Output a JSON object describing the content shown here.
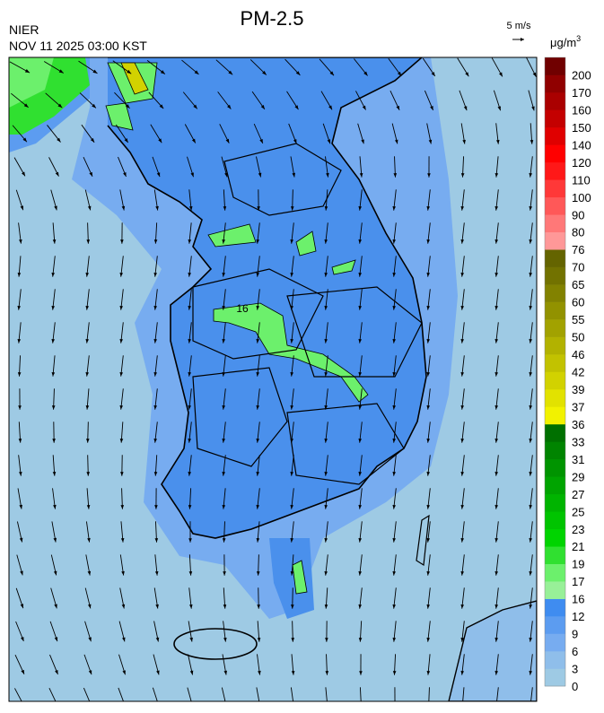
{
  "header": {
    "title": "PM-2.5",
    "agency": "NIER",
    "timestamp": "NOV 11 2025 03:00 KST",
    "wind_scale": "5 m/s",
    "unit": {
      "base": "μg/m",
      "sup": "3"
    }
  },
  "map": {
    "contour_label": "16"
  },
  "colorbar": {
    "ticks": [
      0,
      3,
      6,
      9,
      12,
      16,
      17,
      19,
      21,
      23,
      25,
      27,
      29,
      31,
      33,
      36,
      37,
      39,
      42,
      46,
      50,
      55,
      60,
      65,
      70,
      76,
      80,
      90,
      100,
      110,
      120,
      140,
      150,
      160,
      170,
      200
    ],
    "colors": [
      "#9ecae4",
      "#8fbeea",
      "#77acf0",
      "#5c9cf0",
      "#3f8cf0",
      "#98f098",
      "#6cf06c",
      "#30e030",
      "#00d400",
      "#00c400",
      "#00b400",
      "#00a400",
      "#009400",
      "#008400",
      "#007000",
      "#f2f200",
      "#e2e200",
      "#d2d200",
      "#c2c200",
      "#b2b200",
      "#a2a200",
      "#929200",
      "#828200",
      "#727200",
      "#646400",
      "#ff9898",
      "#ff7878",
      "#ff5858",
      "#ff3838",
      "#ff1818",
      "#ff0000",
      "#e00000",
      "#c40000",
      "#aa0000",
      "#900000",
      "#700000"
    ]
  }
}
